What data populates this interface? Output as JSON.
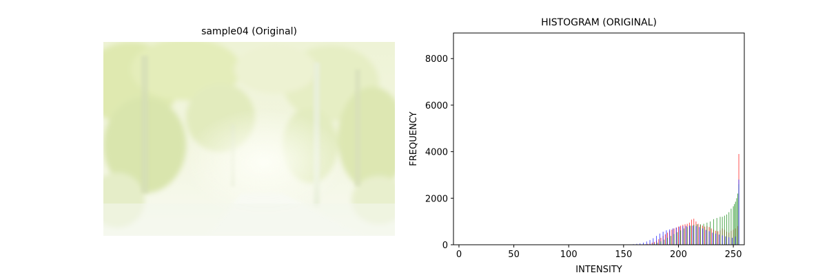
{
  "image_panel": {
    "title": "sample04 (Original)",
    "description_colors": {
      "sky": "#fbfdf3",
      "foliage_light": "#e9f0c4",
      "foliage_mid": "#d6e3a6",
      "trunk": "#dfe8cf",
      "road": "#f6f8f2"
    }
  },
  "chart_data": {
    "type": "bar",
    "title": "HISTOGRAM (ORIGINAL)",
    "xlabel": "INTENSITY",
    "ylabel": "FREQUENCY",
    "xlim": [
      -5,
      260
    ],
    "ylim": [
      0,
      9100
    ],
    "xticks": [
      0,
      50,
      100,
      150,
      200,
      250
    ],
    "yticks": [
      0,
      2000,
      4000,
      6000,
      8000
    ],
    "grid": false,
    "legend": "none",
    "series": [
      {
        "color": "#ff0000",
        "x": [
          170,
          172,
          174,
          176,
          178,
          180,
          182,
          184,
          186,
          188,
          190,
          192,
          194,
          196,
          198,
          200,
          202,
          204,
          206,
          208,
          210,
          212,
          214,
          216,
          218,
          220,
          222,
          224,
          226,
          228,
          230,
          232,
          234,
          236,
          238,
          240,
          242,
          244,
          246,
          248,
          250,
          252,
          254,
          255
        ],
        "values": [
          20,
          40,
          60,
          90,
          120,
          180,
          240,
          300,
          380,
          450,
          520,
          600,
          650,
          700,
          740,
          780,
          820,
          860,
          880,
          900,
          950,
          1080,
          1120,
          1000,
          900,
          850,
          820,
          780,
          800,
          760,
          700,
          650,
          600,
          580,
          620,
          700,
          640,
          560,
          520,
          600,
          650,
          700,
          800,
          3900
        ]
      },
      {
        "color": "#008000",
        "x": [
          175,
          178,
          181,
          184,
          187,
          190,
          193,
          196,
          199,
          202,
          205,
          208,
          211,
          214,
          217,
          220,
          223,
          226,
          229,
          232,
          235,
          238,
          240,
          242,
          244,
          246,
          248,
          250,
          251,
          252,
          253,
          254,
          255
        ],
        "values": [
          20,
          50,
          90,
          150,
          220,
          300,
          380,
          460,
          540,
          620,
          700,
          760,
          820,
          860,
          880,
          880,
          900,
          950,
          1000,
          1100,
          1150,
          1200,
          1200,
          1250,
          1300,
          1400,
          1550,
          1650,
          1750,
          1850,
          2000,
          2200,
          2600
        ]
      },
      {
        "color": "#0000ff",
        "x": [
          150,
          153,
          156,
          159,
          162,
          165,
          168,
          171,
          174,
          177,
          180,
          183,
          186,
          189,
          192,
          195,
          198,
          201,
          204,
          207,
          210,
          213,
          216,
          219,
          222,
          225,
          228,
          231,
          234,
          237,
          240,
          243,
          246,
          249,
          252,
          255
        ],
        "values": [
          5,
          10,
          15,
          25,
          40,
          60,
          90,
          140,
          200,
          280,
          380,
          480,
          560,
          620,
          660,
          700,
          740,
          780,
          800,
          810,
          820,
          820,
          800,
          760,
          700,
          640,
          580,
          520,
          480,
          440,
          400,
          360,
          320,
          300,
          350,
          2800
        ]
      }
    ]
  }
}
